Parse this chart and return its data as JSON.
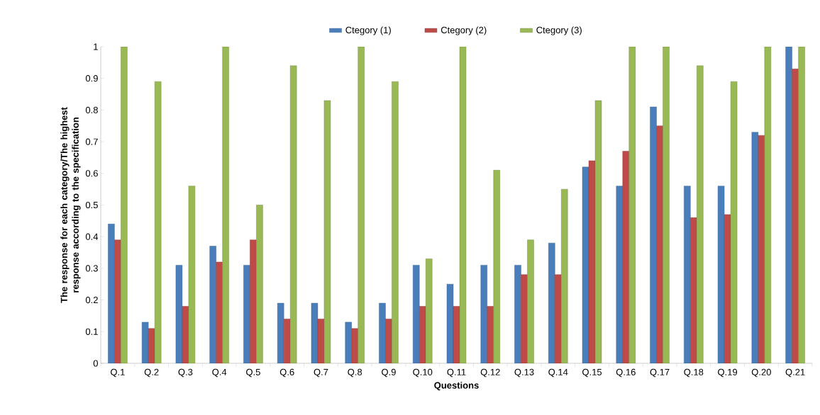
{
  "chart_data": {
    "type": "bar",
    "xlabel": "Questions",
    "ylabel": "The response for each category/The highest response according to the specification",
    "categories": [
      "Q.1",
      "Q.2",
      "Q.3",
      "Q.4",
      "Q.5",
      "Q.6",
      "Q.7",
      "Q.8",
      "Q.9",
      "Q.10",
      "Q.11",
      "Q.12",
      "Q.13",
      "Q.14",
      "Q.15",
      "Q.16",
      "Q.17",
      "Q.18",
      "Q.19",
      "Q.20",
      "Q.21"
    ],
    "series": [
      {
        "name": "Ctegory (1)",
        "color": "#4a7ebb",
        "values": [
          0.44,
          0.13,
          0.31,
          0.37,
          0.31,
          0.19,
          0.19,
          0.13,
          0.19,
          0.31,
          0.25,
          0.31,
          0.31,
          0.38,
          0.62,
          0.56,
          0.81,
          0.56,
          0.56,
          0.73,
          1.0
        ]
      },
      {
        "name": "Ctegory (2)",
        "color": "#be4b48",
        "values": [
          0.39,
          0.11,
          0.18,
          0.32,
          0.39,
          0.14,
          0.14,
          0.11,
          0.14,
          0.18,
          0.18,
          0.18,
          0.28,
          0.28,
          0.64,
          0.67,
          0.75,
          0.46,
          0.47,
          0.72,
          0.93
        ]
      },
      {
        "name": "Ctegory (3)",
        "color": "#98b954",
        "values": [
          1.0,
          0.89,
          0.56,
          1.0,
          0.5,
          0.94,
          0.83,
          1.0,
          0.89,
          0.33,
          1.0,
          0.61,
          0.39,
          0.55,
          0.83,
          1.0,
          1.0,
          0.94,
          0.89,
          1.0,
          1.0
        ]
      }
    ],
    "ylim": [
      0,
      1
    ],
    "yticks": [
      0,
      0.1,
      0.2,
      0.3,
      0.4,
      0.5,
      0.6,
      0.7,
      0.8,
      0.9,
      1
    ],
    "grid": false,
    "legend": "top"
  }
}
